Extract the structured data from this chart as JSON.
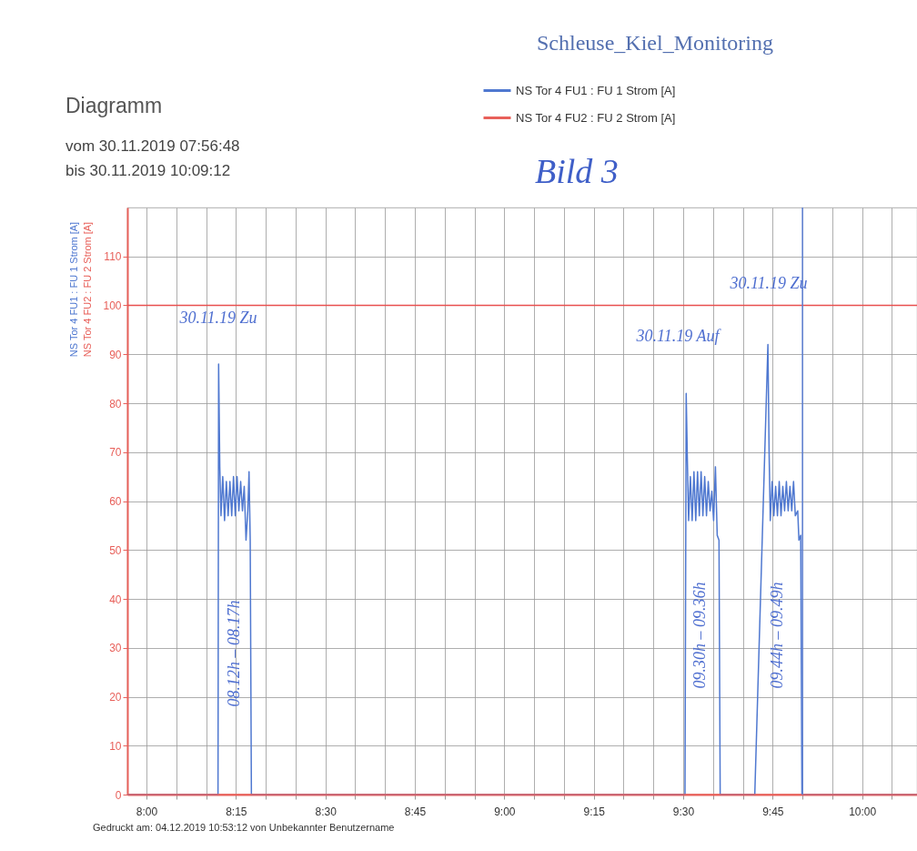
{
  "chart_data": {
    "type": "line",
    "title": "Schleuse_Kiel_Monitoring",
    "subtitle": "Diagramm",
    "ylabel": "NS Tor 4 FU1 : FU 1 Strom [A]\nNS Tor 4 FU2 : FU 2 Strom [A]",
    "xlim": [
      7.9467,
      10.1533
    ],
    "ylim": [
      0,
      120
    ],
    "xticks": [
      {
        "value": 8,
        "label": "8:00"
      },
      {
        "value": 8.0833,
        "label": null
      },
      {
        "value": 8.1667,
        "label": null
      },
      {
        "value": 8.25,
        "label": "8:15"
      },
      {
        "value": 8.3333,
        "label": null
      },
      {
        "value": 8.4167,
        "label": null
      },
      {
        "value": 8.5,
        "label": "8:30"
      },
      {
        "value": 8.5833,
        "label": null
      },
      {
        "value": 8.6667,
        "label": null
      },
      {
        "value": 8.75,
        "label": "8:45"
      },
      {
        "value": 8.8333,
        "label": null
      },
      {
        "value": 8.9167,
        "label": null
      },
      {
        "value": 9,
        "label": "9:00"
      },
      {
        "value": 9.0833,
        "label": null
      },
      {
        "value": 9.1667,
        "label": null
      },
      {
        "value": 9.25,
        "label": "9:15"
      },
      {
        "value": 9.3333,
        "label": null
      },
      {
        "value": 9.4167,
        "label": null
      },
      {
        "value": 9.5,
        "label": "9:30"
      },
      {
        "value": 9.5833,
        "label": null
      },
      {
        "value": 9.6667,
        "label": null
      },
      {
        "value": 9.75,
        "label": "9:45"
      },
      {
        "value": 9.8333,
        "label": null
      },
      {
        "value": 9.9167,
        "label": null
      },
      {
        "value": 10,
        "label": "10:00"
      },
      {
        "value": 10.0833,
        "label": null
      }
    ],
    "yticks": [
      0,
      10,
      20,
      30,
      40,
      50,
      60,
      70,
      80,
      90,
      100,
      110
    ],
    "grid": true,
    "legend": "top",
    "line_style": "solid",
    "marker": "none",
    "series": [
      {
        "name": "NS Tor 4 FU1 : FU 1 Strom [A]",
        "color": "#4f78d0",
        "x": [
          7.9467,
          8.2,
          8.2017,
          8.205,
          8.2083,
          8.2133,
          8.2183,
          8.2233,
          8.2283,
          8.2333,
          8.2383,
          8.2433,
          8.2483,
          8.2533,
          8.2583,
          8.2633,
          8.2683,
          8.2733,
          8.2783,
          8.2833,
          8.2867,
          8.29,
          8.2933,
          9.505,
          9.5083,
          9.5117,
          9.515,
          9.52,
          9.525,
          9.53,
          9.535,
          9.54,
          9.545,
          9.55,
          9.555,
          9.56,
          9.565,
          9.57,
          9.575,
          9.58,
          9.585,
          9.59,
          9.595,
          9.6,
          9.6033,
          9.7,
          9.7367,
          9.74,
          9.7433,
          9.7483,
          9.7533,
          9.7583,
          9.7633,
          9.7683,
          9.7733,
          9.7783,
          9.7833,
          9.7883,
          9.7933,
          9.7983,
          9.8033,
          9.8083,
          9.8133,
          9.82,
          9.8233,
          9.8283,
          9.8317,
          10.1533
        ],
        "values": [
          0,
          0,
          88,
          67,
          57,
          65,
          56,
          64,
          57,
          64,
          57,
          65,
          57,
          65,
          58,
          64,
          58,
          63,
          52,
          58,
          66,
          52,
          0,
          0,
          82,
          68,
          56,
          65,
          56,
          66,
          56,
          66,
          57,
          66,
          57,
          65,
          57,
          64,
          58,
          62,
          56,
          67,
          53,
          52,
          0,
          0,
          92,
          70,
          56,
          64,
          57,
          63,
          57,
          64,
          57,
          63,
          58,
          64,
          58,
          63,
          58,
          64,
          57,
          58,
          52,
          53,
          0,
          0
        ]
      },
      {
        "name": "NS Tor 4 FU2 : FU 2 Strom [A]",
        "color": "#e8605a",
        "x": [
          7.9467,
          10.1533
        ],
        "values": [
          0,
          0
        ]
      }
    ],
    "ref_lines": [
      {
        "axis": "y",
        "value": 100,
        "color": "#e8504f"
      },
      {
        "axis": "x",
        "value": 9.8333,
        "color": "#5b7fd4"
      }
    ],
    "annotations": [
      "vom  30.11.2019  07:56:48",
      "bis   30.11.2019  10:09:12",
      "Bild 3",
      "Gedruckt am: 04.12.2019  10:53:12   von  Unbekannter Benutzername",
      "30.11.19 Zu",
      "08.12h – 08.17h",
      "30.11.19 Auf",
      "09.30h – 09.36h",
      "30.11.19 Zu",
      "09.44h – 09.49h"
    ]
  }
}
